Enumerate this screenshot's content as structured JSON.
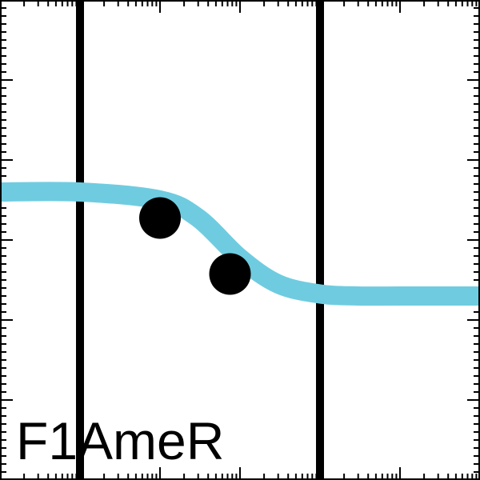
{
  "chart_data": {
    "type": "line",
    "title": "F1AmeR",
    "xlabel": "",
    "ylabel": "",
    "x_scale": "log",
    "xlim": [
      0.001,
      1000
    ],
    "ylim": [
      0,
      1.2
    ],
    "grid": false,
    "legend": "none",
    "vertical_lines_x": [
      0.01,
      10
    ],
    "series": [
      {
        "color": "#6FCCE0",
        "x": [
          0.001,
          0.01,
          0.1,
          0.3,
          1,
          3,
          10,
          30,
          100,
          1000
        ],
        "y": [
          0.72,
          0.72,
          0.7,
          0.655,
          0.555,
          0.49,
          0.465,
          0.46,
          0.46,
          0.46
        ]
      }
    ],
    "markers": {
      "color": "#000000",
      "x": [
        0.1,
        0.75
      ],
      "y": [
        0.655,
        0.515
      ]
    }
  }
}
